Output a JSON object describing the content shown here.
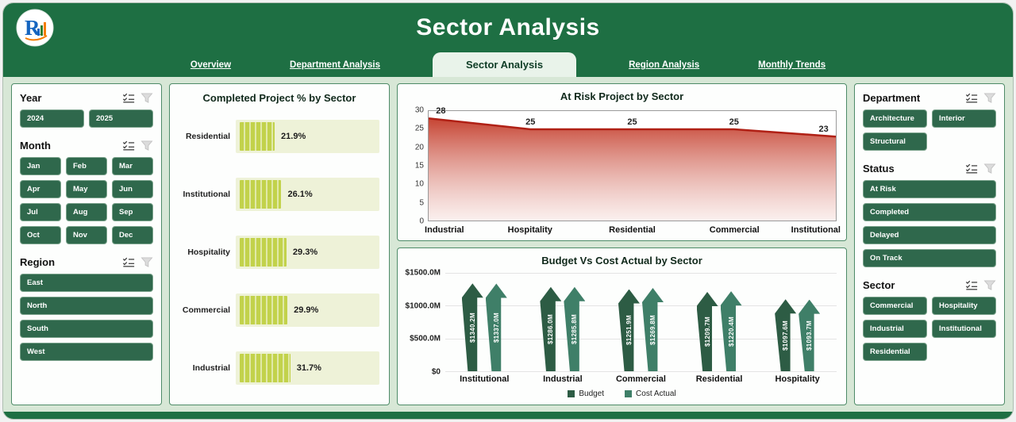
{
  "header": {
    "title": "Sector Analysis",
    "tabs": [
      {
        "label": "Overview",
        "active": false
      },
      {
        "label": "Department Analysis",
        "active": false
      },
      {
        "label": "Sector Analysis",
        "active": true
      },
      {
        "label": "Region Analysis",
        "active": false
      },
      {
        "label": "Monthly Trends",
        "active": false
      }
    ]
  },
  "filters": {
    "year": {
      "label": "Year",
      "options": [
        "2024",
        "2025"
      ]
    },
    "month": {
      "label": "Month",
      "options": [
        "Jan",
        "Feb",
        "Mar",
        "Apr",
        "May",
        "Jun",
        "Jul",
        "Aug",
        "Sep",
        "Oct",
        "Nov",
        "Dec"
      ]
    },
    "region": {
      "label": "Region",
      "options": [
        "East",
        "North",
        "South",
        "West"
      ]
    },
    "department": {
      "label": "Department",
      "options": [
        "Architecture",
        "Interior",
        "Structural"
      ]
    },
    "status": {
      "label": "Status",
      "options": [
        "At Risk",
        "Completed",
        "Delayed",
        "On Track"
      ]
    },
    "sector": {
      "label": "Sector",
      "options": [
        "Commercial",
        "Hospitality",
        "Industrial",
        "Institutional",
        "Residential"
      ]
    }
  },
  "colors": {
    "header_green": "#1e6f43",
    "button_green": "#2f684c",
    "panel_border_green": "#4e8b68",
    "bar_yellow_green": "#c2d24b",
    "area_red": "#b02015",
    "budget_green": "#2d5c44",
    "cost_actual_green": "#3f7f68"
  },
  "chart_data": [
    {
      "type": "bar",
      "orientation": "horizontal",
      "title": "Completed Project % by Sector",
      "categories": [
        "Residential",
        "Institutional",
        "Hospitality",
        "Commercial",
        "Industrial"
      ],
      "values": [
        21.9,
        26.1,
        29.3,
        29.9,
        31.7
      ],
      "value_labels": [
        "21.9%",
        "26.1%",
        "29.3%",
        "29.9%",
        "31.7%"
      ],
      "xlim": [
        0,
        90
      ],
      "bar_color": "#c2d24b"
    },
    {
      "type": "area",
      "title": "At Risk Project by Sector",
      "categories": [
        "Industrial",
        "Hospitality",
        "Residential",
        "Commercial",
        "Institutional"
      ],
      "values": [
        28,
        25,
        25,
        25,
        23
      ],
      "ylim": [
        0,
        30
      ],
      "yticks": [
        0,
        5,
        10,
        15,
        20,
        25,
        30
      ],
      "line_color": "#b02015",
      "grid": false,
      "legend_position": "none"
    },
    {
      "type": "bar",
      "subtype": "arrow-columns",
      "title": "Budget Vs Cost Actual by Sector",
      "categories": [
        "Institutional",
        "Industrial",
        "Commercial",
        "Residential",
        "Hospitality"
      ],
      "series": [
        {
          "name": "Budget",
          "color": "#2d5c44",
          "values": [
            1340.2,
            1286.0,
            1251.9,
            1209.7,
            1097.6
          ],
          "labels": [
            "$1340.2M",
            "$1286.0M",
            "$1251.9M",
            "$1209.7M",
            "$1097.6M"
          ]
        },
        {
          "name": "Cost Actual",
          "color": "#3f7f68",
          "values": [
            1337.0,
            1285.8,
            1269.8,
            1220.4,
            1093.7
          ],
          "labels": [
            "$1337.0M",
            "$1285.8M",
            "$1269.8M",
            "$1220.4M",
            "$1093.7M"
          ]
        }
      ],
      "ylim": [
        0,
        1500
      ],
      "yticks": [
        {
          "label": "$0",
          "value": 0
        },
        {
          "label": "$500.0M",
          "value": 500
        },
        {
          "label": "$1000.0M",
          "value": 1000
        },
        {
          "label": "$1500.0M",
          "value": 1500
        }
      ],
      "legend_position": "bottom"
    }
  ]
}
